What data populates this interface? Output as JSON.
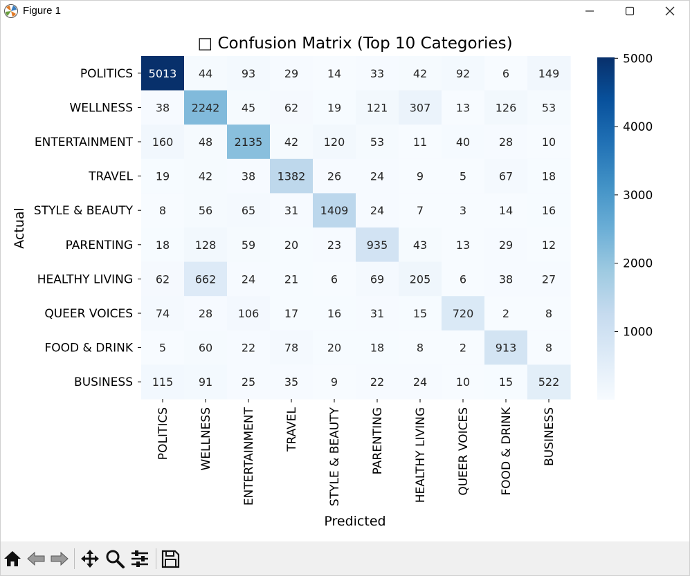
{
  "window": {
    "title": "Figure 1"
  },
  "toolbar": {
    "tools": [
      "home-icon",
      "back-arrow-icon",
      "forward-arrow-icon",
      "pan-icon",
      "zoom-icon",
      "configure-subplots-icon",
      "save-icon"
    ]
  },
  "chart_data": {
    "type": "heatmap",
    "title": "□ Confusion Matrix (Top 10 Categories)",
    "xlabel": "Predicted",
    "ylabel": "Actual",
    "categories": [
      "POLITICS",
      "WELLNESS",
      "ENTERTAINMENT",
      "TRAVEL",
      "STYLE & BEAUTY",
      "PARENTING",
      "HEALTHY LIVING",
      "QUEER VOICES",
      "FOOD & DRINK",
      "BUSINESS"
    ],
    "matrix": [
      [
        5013,
        44,
        93,
        29,
        14,
        33,
        42,
        92,
        6,
        149
      ],
      [
        38,
        2242,
        45,
        62,
        19,
        121,
        307,
        13,
        126,
        53
      ],
      [
        160,
        48,
        2135,
        42,
        120,
        53,
        11,
        40,
        28,
        10
      ],
      [
        19,
        42,
        38,
        1382,
        26,
        24,
        9,
        5,
        67,
        18
      ],
      [
        8,
        56,
        65,
        31,
        1409,
        24,
        7,
        3,
        14,
        16
      ],
      [
        18,
        128,
        59,
        20,
        23,
        935,
        43,
        13,
        29,
        12
      ],
      [
        62,
        662,
        24,
        21,
        6,
        69,
        205,
        6,
        38,
        27
      ],
      [
        74,
        28,
        106,
        17,
        16,
        31,
        15,
        720,
        2,
        8
      ],
      [
        5,
        60,
        22,
        78,
        20,
        18,
        8,
        2,
        913,
        8
      ],
      [
        115,
        91,
        25,
        35,
        9,
        22,
        24,
        10,
        15,
        522
      ]
    ],
    "colormap": "Blues",
    "colorbar": {
      "range": [
        2,
        5013
      ],
      "ticks": [
        1000,
        2000,
        3000,
        4000,
        5000
      ],
      "tick_labels": [
        "1000",
        "2000",
        "3000",
        "4000",
        "5000"
      ]
    },
    "annotations": true,
    "grid": false
  }
}
